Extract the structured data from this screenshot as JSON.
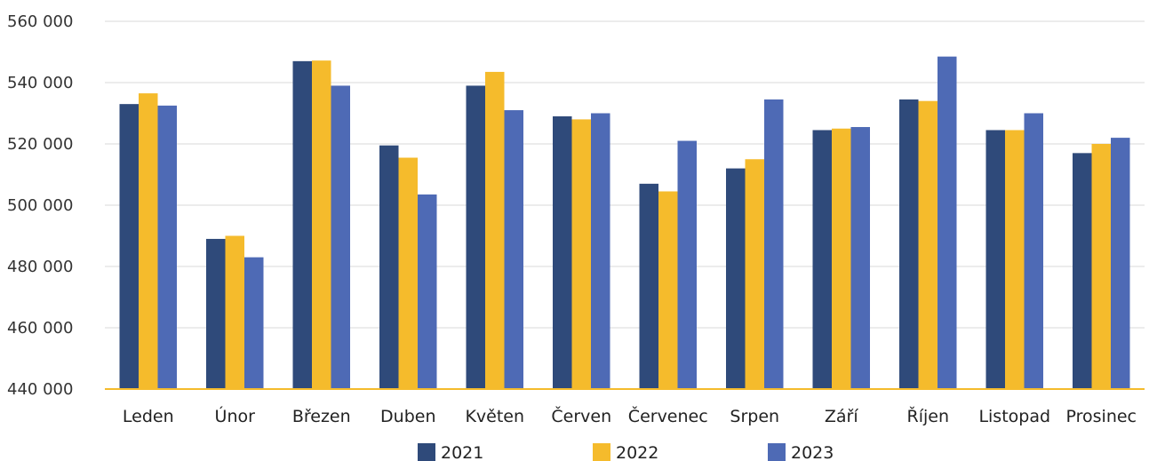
{
  "chart_data": {
    "type": "bar",
    "categories": [
      "Leden",
      "Únor",
      "Březen",
      "Duben",
      "Květen",
      "Červen",
      "Červenec",
      "Srpen",
      "Září",
      "Říjen",
      "Listopad",
      "Prosinec"
    ],
    "series": [
      {
        "name": "2021",
        "color": "#2f4a7a",
        "values": [
          533000,
          489000,
          547000,
          519500,
          539000,
          529000,
          507000,
          512000,
          524500,
          534500,
          524500,
          517000
        ]
      },
      {
        "name": "2022",
        "color": "#f5bb2c",
        "values": [
          536500,
          490000,
          547200,
          515500,
          543500,
          528000,
          504500,
          515000,
          525000,
          534000,
          524500,
          520000
        ]
      },
      {
        "name": "2023",
        "color": "#4e6ab5",
        "values": [
          532500,
          483000,
          539000,
          503500,
          531000,
          530000,
          521000,
          534500,
          525500,
          548500,
          530000,
          522000
        ]
      }
    ],
    "y_ticks": [
      "440 000",
      "460 000",
      "480 000",
      "500 000",
      "520 000",
      "540 000",
      "560 000"
    ],
    "ylim": [
      440000,
      560000
    ],
    "grid": true,
    "legend_position": "bottom",
    "title": "",
    "xlabel": "",
    "ylabel": "",
    "colors": {
      "grid": "#d9d9d9",
      "baseline": "#f5bb2c"
    }
  }
}
